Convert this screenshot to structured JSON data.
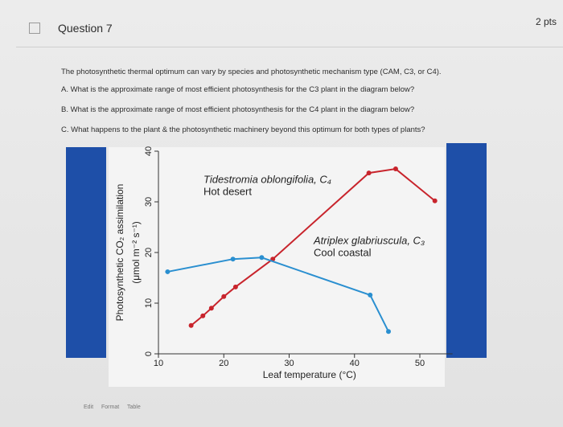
{
  "header": {
    "title": "Question 7",
    "points": "2 pts"
  },
  "question": {
    "intro": "The photosynthetic thermal optimum can vary by species and photosynthetic mechanism type (CAM, C3, or C4).",
    "parts": [
      "A. What is the approximate range of most efficient photosynthesis for the C3 plant in the diagram below?",
      "B. What is the approximate range of most efficient photosynthesis for the C4 plant in the diagram below?",
      "C. What happens to the plant & the photosynthetic machinery beyond this optimum for both types of plants?"
    ]
  },
  "toolbar": [
    "Edit",
    "Format",
    "Table"
  ],
  "chart_data": {
    "type": "line",
    "xlabel": "Leaf temperature (°C)",
    "ylabel": [
      "Photosynthetic CO₂ assimilation",
      "(μmol m⁻² s⁻¹)"
    ],
    "xlim": [
      10,
      55
    ],
    "xticks": [
      10,
      20,
      30,
      40,
      50
    ],
    "ylim": [
      0,
      40
    ],
    "yticks": [
      0,
      10,
      20,
      30,
      40
    ],
    "series": [
      {
        "name": "Tidestromia oblongifolia, C₄",
        "subtitle": "Hot desert",
        "color": "#c8242c",
        "x": [
          15.0,
          16.8,
          18.1,
          20.0,
          21.8,
          27.5,
          42.2,
          46.3,
          52.3
        ],
        "values": [
          5.6,
          7.5,
          9.0,
          11.3,
          13.2,
          18.7,
          35.7,
          36.5,
          30.2
        ]
      },
      {
        "name": "Atriplex glabriuscula, C₃",
        "subtitle": "Cool coastal",
        "color": "#2a8fd0",
        "x": [
          11.4,
          21.4,
          25.8,
          42.4,
          45.2
        ],
        "values": [
          16.2,
          18.7,
          19.0,
          11.6,
          4.4
        ]
      }
    ]
  }
}
